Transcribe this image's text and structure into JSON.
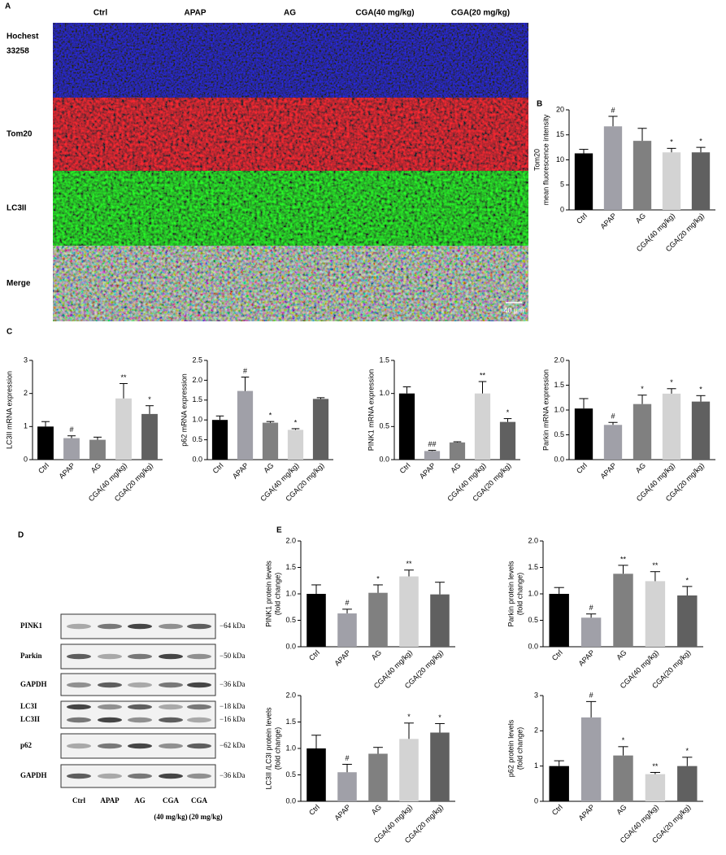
{
  "panel_labels": [
    "A",
    "B",
    "C",
    "D",
    "E"
  ],
  "microscopy": {
    "columns": [
      "Ctrl",
      "APAP",
      "AG",
      "CGA(40 mg/kg)",
      "CGA(20 mg/kg)"
    ],
    "rows": [
      [
        "Hochest",
        "33258"
      ],
      [
        "Tom20"
      ],
      [
        "LC3II"
      ],
      [
        "Merge"
      ]
    ],
    "scale_bar": "40 μm"
  },
  "blot": {
    "proteins": [
      "PINK1",
      "Parkin",
      "GAPDH",
      "LC3I",
      "LC3II",
      "p62",
      "GAPDH"
    ],
    "sizes": [
      "−64 kDa",
      "−50 kDa",
      "−36 kDa",
      "−18 kDa",
      "−16 kDa",
      "−62 kDa",
      "−36 kDa"
    ],
    "lanes": [
      [
        "Ctrl"
      ],
      [
        "APAP"
      ],
      [
        "AG"
      ],
      [
        "CGA",
        "(40 mg/kg)"
      ],
      [
        "CGA",
        "(20 mg/kg)"
      ]
    ]
  },
  "chart_data": [
    {
      "type": "bar",
      "ylabel": [
        "Tom20",
        "mean fluorescence intensity"
      ],
      "categories": [
        "Ctrl",
        "APAP",
        "AG",
        "CGA(40 mg/kg)",
        "CGA(20 mg/kg)"
      ],
      "values": [
        11.3,
        16.7,
        13.8,
        11.5,
        11.5
      ],
      "errors": [
        0.8,
        2,
        2.5,
        0.8,
        1
      ],
      "annotations": [
        null,
        "#",
        null,
        "*",
        "*"
      ],
      "colors": [
        "#000000",
        "#a0a0a8",
        "#808080",
        "#d3d3d3",
        "#606060"
      ],
      "ylim": [
        0,
        20
      ],
      "yticks": [
        0,
        5,
        10,
        15,
        20
      ]
    },
    {
      "type": "bar",
      "ylabel": [
        "LC3II mRNA expression"
      ],
      "categories": [
        "Ctrl",
        "APAP",
        "AG",
        "CGA(40 mg/kg)",
        "CGA(20 mg/kg)"
      ],
      "values": [
        1.0,
        0.65,
        0.6,
        1.85,
        1.38
      ],
      "errors": [
        0.15,
        0.07,
        0.08,
        0.45,
        0.25
      ],
      "annotations": [
        null,
        "#",
        null,
        "**",
        "*"
      ],
      "colors": [
        "#000000",
        "#a0a0a8",
        "#808080",
        "#d3d3d3",
        "#606060"
      ],
      "ylim": [
        0,
        3
      ],
      "yticks": [
        0,
        1,
        2,
        3
      ]
    },
    {
      "type": "bar",
      "ylabel": [
        "p62 mRNA expression"
      ],
      "categories": [
        "Ctrl",
        "APAP",
        "AG",
        "CGA(40 mg/kg)",
        "CGA(20 mg/kg)"
      ],
      "values": [
        1.0,
        1.73,
        0.93,
        0.75,
        1.53
      ],
      "errors": [
        0.1,
        0.35,
        0.03,
        0.03,
        0.03
      ],
      "annotations": [
        null,
        "#",
        "*",
        "*",
        null
      ],
      "colors": [
        "#000000",
        "#a0a0a8",
        "#808080",
        "#d3d3d3",
        "#606060"
      ],
      "ylim": [
        0,
        2.5
      ],
      "yticks": [
        {
          "value": 0,
          "label": "0.0"
        },
        0.5,
        {
          "value": 1,
          "label": "1.0"
        },
        1.5,
        {
          "value": 2,
          "label": "2.0"
        },
        2.5
      ]
    },
    {
      "type": "bar",
      "ylabel": [
        "PINK1 mRNA expression"
      ],
      "categories": [
        "Ctrl",
        "APAP",
        "AG",
        "CGA(40 mg/kg)",
        "CGA(20 mg/kg)"
      ],
      "values": [
        1.0,
        0.13,
        0.26,
        1.0,
        0.57
      ],
      "errors": [
        0.1,
        0.01,
        0.01,
        0.18,
        0.05
      ],
      "annotations": [
        null,
        "##",
        null,
        "**",
        "*"
      ],
      "colors": [
        "#000000",
        "#a0a0a8",
        "#808080",
        "#d3d3d3",
        "#606060"
      ],
      "ylim": [
        0,
        1.5
      ],
      "yticks": [
        {
          "value": 0,
          "label": "0.0"
        },
        0.5,
        {
          "value": 1,
          "label": "1.0"
        },
        1.5
      ]
    },
    {
      "type": "bar",
      "ylabel": [
        "Parkin mRNA expression"
      ],
      "categories": [
        "Ctrl",
        "APAP",
        "AG",
        "CGA(40 mg/kg)",
        "CGA(20 mg/kg)"
      ],
      "values": [
        1.03,
        0.7,
        1.12,
        1.33,
        1.17
      ],
      "errors": [
        0.2,
        0.05,
        0.18,
        0.1,
        0.12
      ],
      "annotations": [
        null,
        "#",
        "*",
        "*",
        "*"
      ],
      "colors": [
        "#000000",
        "#a0a0a8",
        "#808080",
        "#d3d3d3",
        "#606060"
      ],
      "ylim": [
        0,
        2
      ],
      "yticks": [
        {
          "value": 0,
          "label": "0.0"
        },
        0.5,
        {
          "value": 1,
          "label": "1.0"
        },
        1.5,
        {
          "value": 2,
          "label": "2.0"
        }
      ]
    },
    {
      "type": "bar",
      "ylabel": [
        "PINK1 protein levels",
        "(fold change)"
      ],
      "categories": [
        "Ctrl",
        "APAP",
        "AG",
        "CGA(40 mg/kg)",
        "CGA(20 mg/kg)"
      ],
      "values": [
        1.0,
        0.63,
        1.02,
        1.33,
        0.99
      ],
      "errors": [
        0.17,
        0.08,
        0.15,
        0.12,
        0.23
      ],
      "annotations": [
        null,
        "#",
        "*",
        "**",
        null
      ],
      "colors": [
        "#000000",
        "#a0a0a8",
        "#808080",
        "#d3d3d3",
        "#606060"
      ],
      "ylim": [
        0,
        2
      ],
      "yticks": [
        {
          "value": 0,
          "label": "0.0"
        },
        0.5,
        {
          "value": 1,
          "label": "1.0"
        },
        1.5,
        {
          "value": 2,
          "label": "2.0"
        }
      ]
    },
    {
      "type": "bar",
      "ylabel": [
        "Parkin protein levels",
        "(fold change)"
      ],
      "categories": [
        "Ctrl",
        "APAP",
        "AG",
        "CGA(40 mg/kg)",
        "CGA(20 mg/kg)"
      ],
      "values": [
        1.0,
        0.55,
        1.38,
        1.24,
        0.97
      ],
      "errors": [
        0.12,
        0.07,
        0.16,
        0.18,
        0.17
      ],
      "annotations": [
        null,
        "#",
        "**",
        "**",
        "*"
      ],
      "colors": [
        "#000000",
        "#a0a0a8",
        "#808080",
        "#d3d3d3",
        "#606060"
      ],
      "ylim": [
        0,
        2
      ],
      "yticks": [
        {
          "value": 0,
          "label": "0.0"
        },
        0.5,
        {
          "value": 1,
          "label": "1.0"
        },
        1.5,
        {
          "value": 2,
          "label": "2.0"
        }
      ]
    },
    {
      "type": "bar",
      "ylabel": [
        "LC3II /LC3I protein levels",
        "(fold change)"
      ],
      "categories": [
        "Ctrl",
        "APAP",
        "AG",
        "CGA(40 mg/kg)",
        "CGA(20 mg/kg)"
      ],
      "values": [
        1.0,
        0.55,
        0.9,
        1.18,
        1.3
      ],
      "errors": [
        0.25,
        0.15,
        0.12,
        0.3,
        0.17
      ],
      "annotations": [
        null,
        "#",
        null,
        "*",
        "*"
      ],
      "colors": [
        "#000000",
        "#a0a0a8",
        "#808080",
        "#d3d3d3",
        "#606060"
      ],
      "ylim": [
        0,
        2
      ],
      "yticks": [
        {
          "value": 0,
          "label": "0.0"
        },
        0.5,
        {
          "value": 1,
          "label": "1.0"
        },
        1.5,
        {
          "value": 2,
          "label": "2.0"
        }
      ]
    },
    {
      "type": "bar",
      "ylabel": [
        "p62 protein levels",
        "(fold change)"
      ],
      "categories": [
        "Ctrl",
        "APAP",
        "AG",
        "CGA(40 mg/kg)",
        "CGA(20 mg/kg)"
      ],
      "values": [
        1.0,
        2.38,
        1.3,
        0.77,
        1.0
      ],
      "errors": [
        0.15,
        0.45,
        0.25,
        0.05,
        0.25
      ],
      "annotations": [
        null,
        "#",
        "*",
        "**",
        "*"
      ],
      "colors": [
        "#000000",
        "#a0a0a8",
        "#808080",
        "#d3d3d3",
        "#606060"
      ],
      "ylim": [
        0,
        3
      ],
      "yticks": [
        0,
        1,
        2,
        3
      ]
    }
  ]
}
